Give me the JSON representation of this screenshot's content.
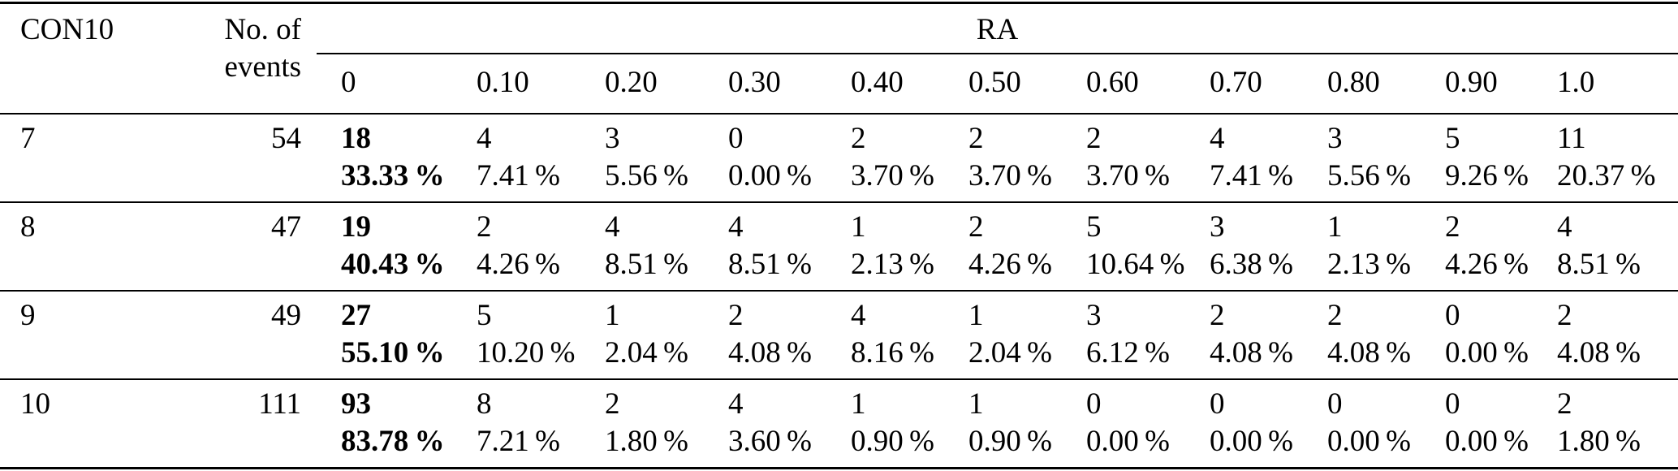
{
  "table": {
    "col_headers": {
      "con10": "CON10",
      "events": "No. of events",
      "ra": "RA"
    },
    "ra_levels": [
      "0",
      "0.10",
      "0.20",
      "0.30",
      "0.40",
      "0.50",
      "0.60",
      "0.70",
      "0.80",
      "0.90",
      "1.0"
    ],
    "rows": [
      {
        "con10": "7",
        "events": "54",
        "cells": [
          {
            "n": "18",
            "p": "33.33 %"
          },
          {
            "n": "4",
            "p": "7.41 %"
          },
          {
            "n": "3",
            "p": "5.56 %"
          },
          {
            "n": "0",
            "p": "0.00 %"
          },
          {
            "n": "2",
            "p": "3.70 %"
          },
          {
            "n": "2",
            "p": "3.70 %"
          },
          {
            "n": "2",
            "p": "3.70 %"
          },
          {
            "n": "4",
            "p": "7.41 %"
          },
          {
            "n": "3",
            "p": "5.56 %"
          },
          {
            "n": "5",
            "p": "9.26 %"
          },
          {
            "n": "11",
            "p": "20.37 %"
          }
        ]
      },
      {
        "con10": "8",
        "events": "47",
        "cells": [
          {
            "n": "19",
            "p": "40.43 %"
          },
          {
            "n": "2",
            "p": "4.26 %"
          },
          {
            "n": "4",
            "p": "8.51 %"
          },
          {
            "n": "4",
            "p": "8.51 %"
          },
          {
            "n": "1",
            "p": "2.13 %"
          },
          {
            "n": "2",
            "p": "4.26 %"
          },
          {
            "n": "5",
            "p": "10.64 %"
          },
          {
            "n": "3",
            "p": "6.38 %"
          },
          {
            "n": "1",
            "p": "2.13 %"
          },
          {
            "n": "2",
            "p": "4.26 %"
          },
          {
            "n": "4",
            "p": "8.51 %"
          }
        ]
      },
      {
        "con10": "9",
        "events": "49",
        "cells": [
          {
            "n": "27",
            "p": "55.10 %"
          },
          {
            "n": "5",
            "p": "10.20 %"
          },
          {
            "n": "1",
            "p": "2.04 %"
          },
          {
            "n": "2",
            "p": "4.08 %"
          },
          {
            "n": "4",
            "p": "8.16 %"
          },
          {
            "n": "1",
            "p": "2.04 %"
          },
          {
            "n": "3",
            "p": "6.12 %"
          },
          {
            "n": "2",
            "p": "4.08 %"
          },
          {
            "n": "2",
            "p": "4.08 %"
          },
          {
            "n": "0",
            "p": "0.00 %"
          },
          {
            "n": "2",
            "p": "4.08 %"
          }
        ]
      },
      {
        "con10": "10",
        "events": "111",
        "cells": [
          {
            "n": "93",
            "p": "83.78 %"
          },
          {
            "n": "8",
            "p": "7.21 %"
          },
          {
            "n": "2",
            "p": "1.80 %"
          },
          {
            "n": "4",
            "p": "3.60 %"
          },
          {
            "n": "1",
            "p": "0.90 %"
          },
          {
            "n": "1",
            "p": "0.90 %"
          },
          {
            "n": "0",
            "p": "0.00 %"
          },
          {
            "n": "0",
            "p": "0.00 %"
          },
          {
            "n": "0",
            "p": "0.00 %"
          },
          {
            "n": "0",
            "p": "0.00 %"
          },
          {
            "n": "2",
            "p": "1.80 %"
          }
        ]
      }
    ]
  }
}
